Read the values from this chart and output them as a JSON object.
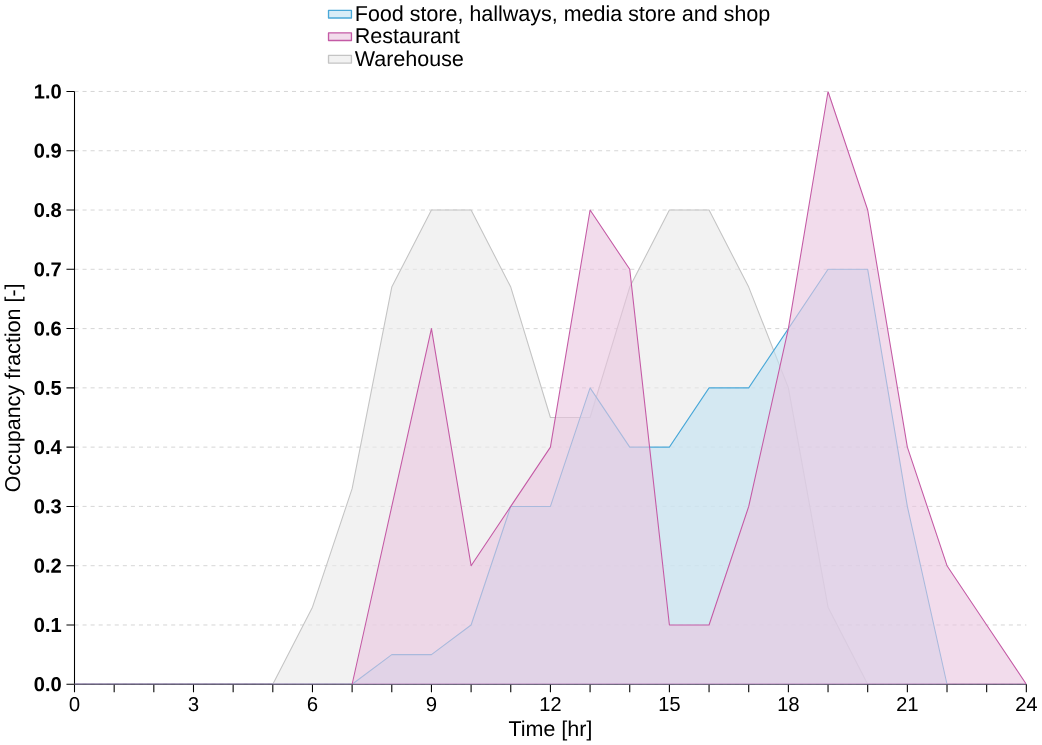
{
  "chart_data": {
    "type": "area",
    "xlabel": "Time [hr]",
    "ylabel": "Occupancy fraction [-]",
    "x": [
      0,
      1,
      2,
      3,
      4,
      5,
      6,
      7,
      8,
      9,
      10,
      11,
      12,
      13,
      14,
      15,
      16,
      17,
      18,
      19,
      20,
      21,
      22,
      23,
      24
    ],
    "series": [
      {
        "name": "Food store, hallways, media store and shop",
        "color": "#4aa8d8",
        "values": [
          0,
          0,
          0,
          0,
          0,
          0,
          0,
          0,
          0.05,
          0.05,
          0.1,
          0.3,
          0.3,
          0.5,
          0.4,
          0.4,
          0.5,
          0.5,
          0.6,
          0.7,
          0.7,
          0.3,
          0,
          0,
          0
        ]
      },
      {
        "name": "Restaurant",
        "color": "#c45aa5",
        "values": [
          0,
          0,
          0,
          0,
          0,
          0,
          0,
          0,
          0.3,
          0.6,
          0.2,
          0.3,
          0.4,
          0.8,
          0.7,
          0.1,
          0.1,
          0.3,
          0.6,
          1.0,
          0.8,
          0.4,
          0.2,
          0.1,
          0
        ]
      },
      {
        "name": "Warehouse",
        "color": "#c4c4c4",
        "values": [
          0,
          0,
          0,
          0,
          0,
          0,
          0.13,
          0.33,
          0.67,
          0.8,
          0.8,
          0.67,
          0.45,
          0.45,
          0.67,
          0.8,
          0.8,
          0.67,
          0.5,
          0.13,
          0,
          0,
          0,
          0,
          0
        ]
      }
    ],
    "xlim": [
      0,
      24
    ],
    "xticks": [
      0,
      3,
      6,
      9,
      12,
      15,
      18,
      21,
      24
    ],
    "ylim": [
      0,
      1.0
    ],
    "yticks": [
      {
        "value": 0,
        "label": "0.0"
      },
      {
        "value": 0.1,
        "label": "0.1"
      },
      {
        "value": 0.2,
        "label": "0.2"
      },
      {
        "value": 0.3,
        "label": "0.3"
      },
      {
        "value": 0.4,
        "label": "0.4"
      },
      {
        "value": 0.5,
        "label": "0.5"
      },
      {
        "value": 0.6,
        "label": "0.6"
      },
      {
        "value": 0.7,
        "label": "0.7"
      },
      {
        "value": 0.8,
        "label": "0.8"
      },
      {
        "value": 0.9,
        "label": "0.9"
      },
      {
        "value": 1.0,
        "label": "1.0"
      }
    ],
    "grid": "y",
    "legend": "top"
  }
}
